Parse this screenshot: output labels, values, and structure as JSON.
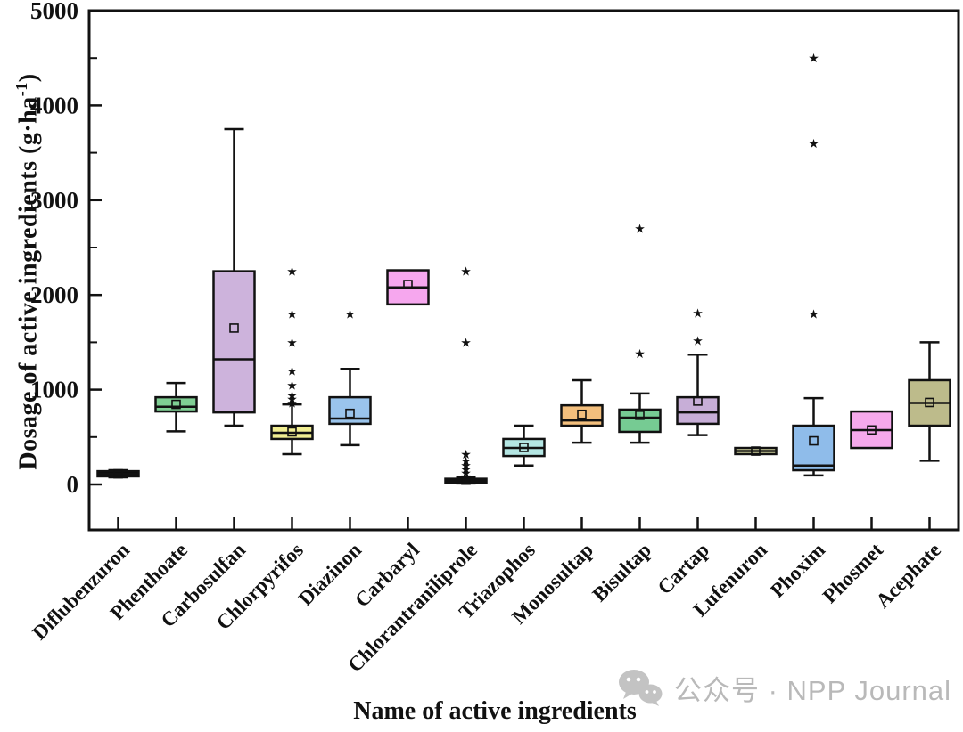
{
  "watermark": {
    "icon": "wechat-icon",
    "text": "公众号 · NPP Journal",
    "color": "#b9b9b9"
  },
  "chart_data": {
    "type": "box",
    "title": "",
    "xlabel": "Name of active ingredients",
    "ylabel": "Dosage of active ingredients (g·ha⁻¹)",
    "ylabel_parts": {
      "main": "Dosage of active ingredients (g·ha",
      "sup": "-1",
      "end": ")"
    },
    "ylim": [
      -480,
      5000
    ],
    "yticks_major": [
      0,
      1000,
      2000,
      3000,
      4000,
      5000
    ],
    "yticks_minor": [
      500,
      1500,
      2500,
      3500,
      4500
    ],
    "grid": false,
    "legend": "none",
    "outlier_marker": "black-star",
    "mean_marker": "open-square",
    "categories": [
      "Diflubenzuron",
      "Phenthoate",
      "Carbosulfan",
      "Chlorpyrifos",
      "Diazinon",
      "Carbaryl",
      "Chlorantraniliprole",
      "Triazophos",
      "Monosultap",
      "Bisultap",
      "Cartap",
      "Lufenuron",
      "Phoxim",
      "Phosmet",
      "Acephate"
    ],
    "boxes": [
      {
        "whisker_low": 75,
        "q1": 85,
        "median": 110,
        "q3": 140,
        "whisker_high": 150,
        "mean": 112,
        "fill": "#0d0d0d",
        "outliers": []
      },
      {
        "whisker_low": 560,
        "q1": 770,
        "median": 820,
        "q3": 920,
        "whisker_high": 1070,
        "mean": 845,
        "fill": "#7fce93",
        "outliers": []
      },
      {
        "whisker_low": 620,
        "q1": 760,
        "median": 1320,
        "q3": 2250,
        "whisker_high": 3750,
        "mean": 1650,
        "fill": "#cdb3dc",
        "outliers": []
      },
      {
        "whisker_low": 320,
        "q1": 480,
        "median": 545,
        "q3": 620,
        "whisker_high": 845,
        "mean": 555,
        "fill": "#f1ee92",
        "outliers": [
          860,
          900,
          940,
          1050,
          1200,
          1500,
          1800,
          2250
        ]
      },
      {
        "whisker_low": 415,
        "q1": 640,
        "median": 695,
        "q3": 920,
        "whisker_high": 1220,
        "mean": 750,
        "fill": "#9ac4ec",
        "outliers": [
          1800
        ]
      },
      {
        "whisker_low": 1900,
        "q1": 1900,
        "median": 2080,
        "q3": 2260,
        "whisker_high": 2260,
        "mean": 2110,
        "fill": "#f6a7ee",
        "outliers": []
      },
      {
        "whisker_low": 10,
        "q1": 20,
        "median": 40,
        "q3": 60,
        "whisker_high": 75,
        "mean": 45,
        "fill": "#0d0d0d",
        "outliers": [
          120,
          160,
          200,
          250,
          320,
          1500,
          2250
        ]
      },
      {
        "whisker_low": 200,
        "q1": 300,
        "median": 385,
        "q3": 480,
        "whisker_high": 620,
        "mean": 390,
        "fill": "#b4e6e3",
        "outliers": []
      },
      {
        "whisker_low": 440,
        "q1": 620,
        "median": 675,
        "q3": 835,
        "whisker_high": 1100,
        "mean": 740,
        "fill": "#f3bf7d",
        "outliers": []
      },
      {
        "whisker_low": 440,
        "q1": 555,
        "median": 705,
        "q3": 790,
        "whisker_high": 960,
        "mean": 730,
        "fill": "#76cb93",
        "outliers": [
          1380,
          2700
        ]
      },
      {
        "whisker_low": 520,
        "q1": 640,
        "median": 760,
        "q3": 920,
        "whisker_high": 1370,
        "mean": 880,
        "fill": "#c7aed7",
        "outliers": [
          1520,
          1810
        ]
      },
      {
        "whisker_low": 320,
        "q1": 320,
        "median": 352,
        "q3": 385,
        "whisker_high": 385,
        "mean": 352,
        "fill": "#dedfa6",
        "outliers": []
      },
      {
        "whisker_low": 95,
        "q1": 150,
        "median": 200,
        "q3": 620,
        "whisker_high": 910,
        "mean": 460,
        "fill": "#8fbcea",
        "outliers": [
          1800,
          3600,
          4500
        ]
      },
      {
        "whisker_low": 385,
        "q1": 385,
        "median": 573,
        "q3": 770,
        "whisker_high": 770,
        "mean": 575,
        "fill": "#f6a9ec",
        "outliers": []
      },
      {
        "whisker_low": 250,
        "q1": 620,
        "median": 860,
        "q3": 1100,
        "whisker_high": 1500,
        "mean": 865,
        "fill": "#bdbb8b",
        "outliers": []
      }
    ]
  }
}
